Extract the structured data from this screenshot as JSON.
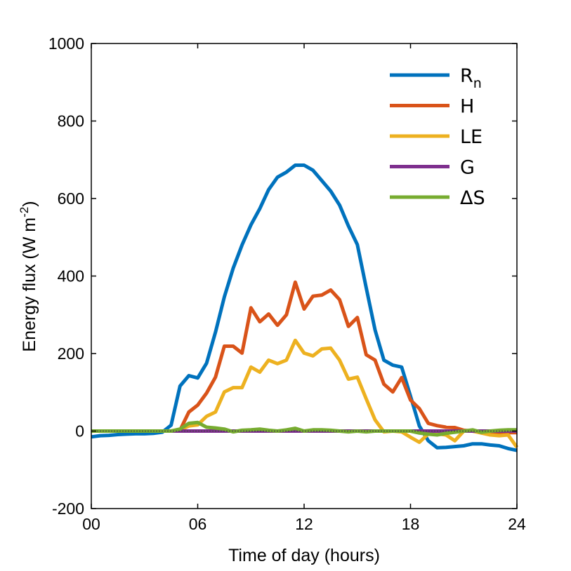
{
  "chart_data": {
    "type": "line",
    "xlabel": "Time of day (hours)",
    "ylabel": "Energy flux (W m",
    "ylabel_sup": "-2",
    "ylabel_close": ")",
    "xlim": [
      0,
      24
    ],
    "ylim": [
      -200,
      1000
    ],
    "xticks": [
      0,
      6,
      12,
      18,
      24
    ],
    "xtick_labels": [
      "00",
      "06",
      "12",
      "18",
      "24"
    ],
    "yticks": [
      -200,
      0,
      200,
      400,
      600,
      800,
      1000
    ],
    "ytick_labels": [
      "-200",
      "0",
      "200",
      "400",
      "600",
      "800",
      "1000"
    ],
    "grid": false,
    "zero_line": "dotted",
    "legend_position": "top-right",
    "x": [
      0,
      0.5,
      1,
      1.5,
      2,
      2.5,
      3,
      3.5,
      4,
      4.5,
      5,
      5.5,
      6,
      6.5,
      7,
      7.5,
      8,
      8.5,
      9,
      9.5,
      10,
      10.5,
      11,
      11.5,
      12,
      12.5,
      13,
      13.5,
      14,
      14.5,
      15,
      15.5,
      16,
      16.5,
      17,
      17.5,
      18,
      18.5,
      19,
      19.5,
      20,
      20.5,
      21,
      21.5,
      22,
      22.5,
      23,
      23.5,
      24
    ],
    "series": [
      {
        "name": "R",
        "subscript": "n",
        "color": "#0072BD",
        "values": [
          -15,
          -12,
          -11,
          -9,
          -8,
          -7,
          -7,
          -6,
          -3,
          15,
          116,
          143,
          137,
          175,
          255,
          346,
          420,
          480,
          532,
          574,
          623,
          655,
          668,
          686,
          686,
          673,
          646,
          619,
          583,
          529,
          481,
          370,
          261,
          183,
          170,
          165,
          90,
          13,
          -25,
          -43,
          -42,
          -40,
          -38,
          -33,
          -33,
          -36,
          -38,
          -45,
          -50
        ]
      },
      {
        "name": "H",
        "color": "#D95319",
        "values": [
          0,
          0,
          0,
          0,
          0,
          0,
          0,
          0,
          0,
          0,
          2,
          49,
          67,
          98,
          139,
          219,
          219,
          201,
          318,
          282,
          302,
          273,
          300,
          384,
          315,
          348,
          351,
          364,
          339,
          270,
          293,
          197,
          183,
          121,
          101,
          138,
          80,
          58,
          20,
          14,
          10,
          9,
          2,
          0,
          -2,
          -3,
          -4,
          -4,
          -4
        ]
      },
      {
        "name": "LE",
        "color": "#EDB120",
        "values": [
          0,
          0,
          0,
          0,
          0,
          0,
          0,
          0,
          0,
          0,
          3,
          13,
          16,
          38,
          49,
          101,
          112,
          112,
          165,
          152,
          183,
          174,
          183,
          234,
          201,
          194,
          212,
          214,
          183,
          134,
          139,
          83,
          29,
          -2,
          0,
          -2,
          -16,
          -29,
          -7,
          -7,
          -10,
          -25,
          0,
          0,
          -5,
          -10,
          -12,
          -10,
          -42
        ]
      },
      {
        "name": "G",
        "color": "#7E2F8E",
        "values": [
          0,
          0,
          0,
          0,
          0,
          0,
          0,
          0,
          0,
          0,
          0,
          0,
          0,
          0,
          0,
          0,
          0,
          0,
          0,
          0,
          0,
          0,
          0,
          0,
          0,
          0,
          0,
          0,
          0,
          0,
          0,
          0,
          0,
          0,
          0,
          0,
          0,
          0,
          0,
          0,
          0,
          0,
          0,
          0,
          0,
          0,
          0,
          0,
          0
        ]
      },
      {
        "name": "ΔS",
        "color": "#77AC30",
        "values": [
          0,
          0,
          0,
          0,
          0,
          0,
          0,
          0,
          0,
          0,
          5,
          20,
          22,
          10,
          8,
          5,
          -2,
          2,
          3,
          5,
          2,
          0,
          3,
          7,
          0,
          3,
          3,
          2,
          0,
          -2,
          0,
          -2,
          0,
          0,
          0,
          0,
          0,
          -5,
          -8,
          -10,
          -6,
          -3,
          0,
          3,
          -3,
          0,
          2,
          3,
          3
        ]
      }
    ]
  }
}
